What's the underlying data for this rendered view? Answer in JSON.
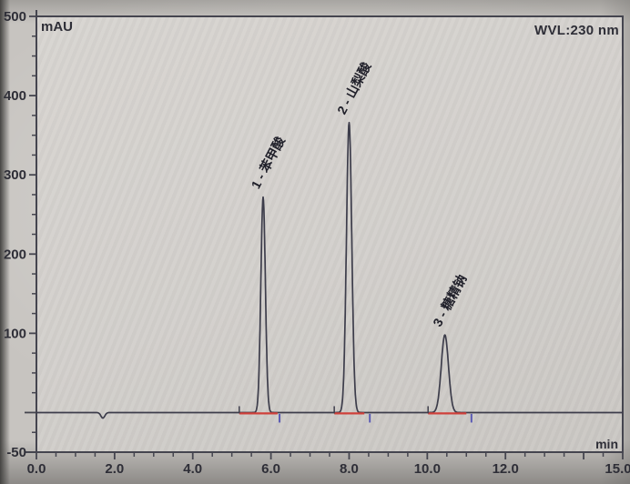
{
  "header": {
    "y_unit": "mAU",
    "detector": "WVL:230 nm",
    "x_unit": "min"
  },
  "chart_data": {
    "type": "line",
    "kind": "hplc-chromatogram",
    "detector_wavelength": "WVL:230 nm",
    "x_axis": {
      "unit": "min",
      "range": [
        0.0,
        15.0
      ],
      "major_ticks": [
        {
          "value": 0,
          "label": "0.0"
        },
        {
          "value": 2,
          "label": "2.0"
        },
        {
          "value": 4,
          "label": "4.0"
        },
        {
          "value": 6,
          "label": "6.0"
        },
        {
          "value": 8,
          "label": "8.0"
        },
        {
          "value": 10,
          "label": "10.0"
        },
        {
          "value": 12,
          "label": "12.0"
        },
        {
          "value": 14,
          "label": ""
        },
        {
          "value": 15,
          "label": "15.0"
        }
      ],
      "minor_step": 0.5
    },
    "y_axis": {
      "unit": "mAU",
      "range": [
        -50,
        500
      ],
      "major_ticks": [
        {
          "value": 500,
          "label": "500"
        },
        {
          "value": 400,
          "label": "400"
        },
        {
          "value": 300,
          "label": "300"
        },
        {
          "value": 200,
          "label": "200"
        },
        {
          "value": 100,
          "label": "100"
        },
        {
          "value": 0,
          "label": ""
        },
        {
          "value": -50,
          "label": "-50"
        }
      ],
      "minor_step": 25
    },
    "baseline_mAU": 0,
    "artifacts": [
      {
        "type": "negative_dip",
        "x_min": 1.7,
        "depth_mAU": 7,
        "sigma_min": 0.05
      }
    ],
    "peaks": [
      {
        "number": 1,
        "name": "苯甲酸",
        "label": "1 - 苯甲酸",
        "retention_min": 5.8,
        "height_mAU": 272,
        "sigma_min": 0.058,
        "integration_start_min": 5.19,
        "integration_end_min": 6.17,
        "end_marker_min": 6.22
      },
      {
        "number": 2,
        "name": "山梨酸",
        "label": "2 - 山梨酸",
        "retention_min": 8.0,
        "height_mAU": 366,
        "sigma_min": 0.068,
        "integration_start_min": 7.62,
        "integration_end_min": 8.39,
        "end_marker_min": 8.53
      },
      {
        "number": 3,
        "name": "糖精钠",
        "label": "3 - 糖精钠",
        "retention_min": 10.45,
        "height_mAU": 98,
        "sigma_min": 0.092,
        "integration_start_min": 10.02,
        "integration_end_min": 11.0,
        "end_marker_min": 11.13
      }
    ],
    "colors": {
      "trace": "#3d3d4b",
      "axis": "#45454f",
      "tick_text": "#2e2e37",
      "integration_baseline": "#cf403a",
      "end_marker": "#5b5bb4",
      "peak_label_text": "#20202a"
    },
    "legend": "none",
    "grid": "off"
  }
}
